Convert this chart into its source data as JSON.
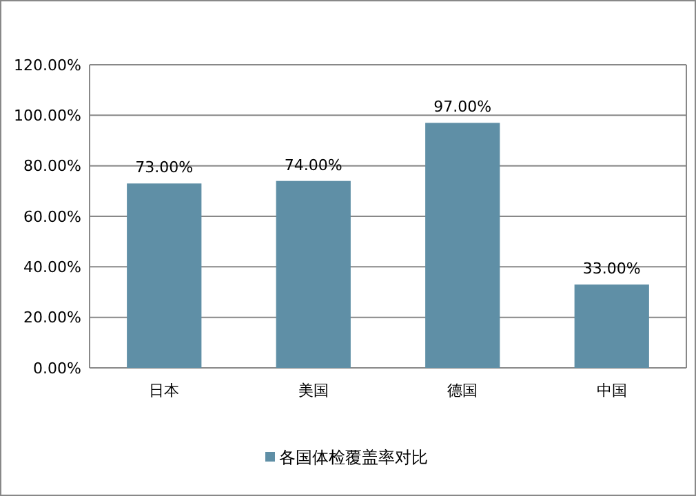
{
  "chart_data": {
    "type": "bar",
    "categories": [
      "日本",
      "美国",
      "德国",
      "中国"
    ],
    "series": [
      {
        "name": "各国体检覆盖率对比",
        "color": "#5f8fa6",
        "values": [
          73,
          74,
          97,
          33
        ]
      }
    ],
    "value_labels": [
      "73.00%",
      "74.00%",
      "97.00%",
      "33.00%"
    ],
    "ylim": [
      0,
      120
    ],
    "yticks": [
      {
        "value": 0,
        "label": "0.00%"
      },
      {
        "value": 20,
        "label": "20.00%"
      },
      {
        "value": 40,
        "label": "40.00%"
      },
      {
        "value": 60,
        "label": "60.00%"
      },
      {
        "value": 80,
        "label": "80.00%"
      },
      {
        "value": 100,
        "label": "100.00%"
      },
      {
        "value": 120,
        "label": "120.00%"
      }
    ],
    "grid": "y",
    "legend": "bottom"
  }
}
